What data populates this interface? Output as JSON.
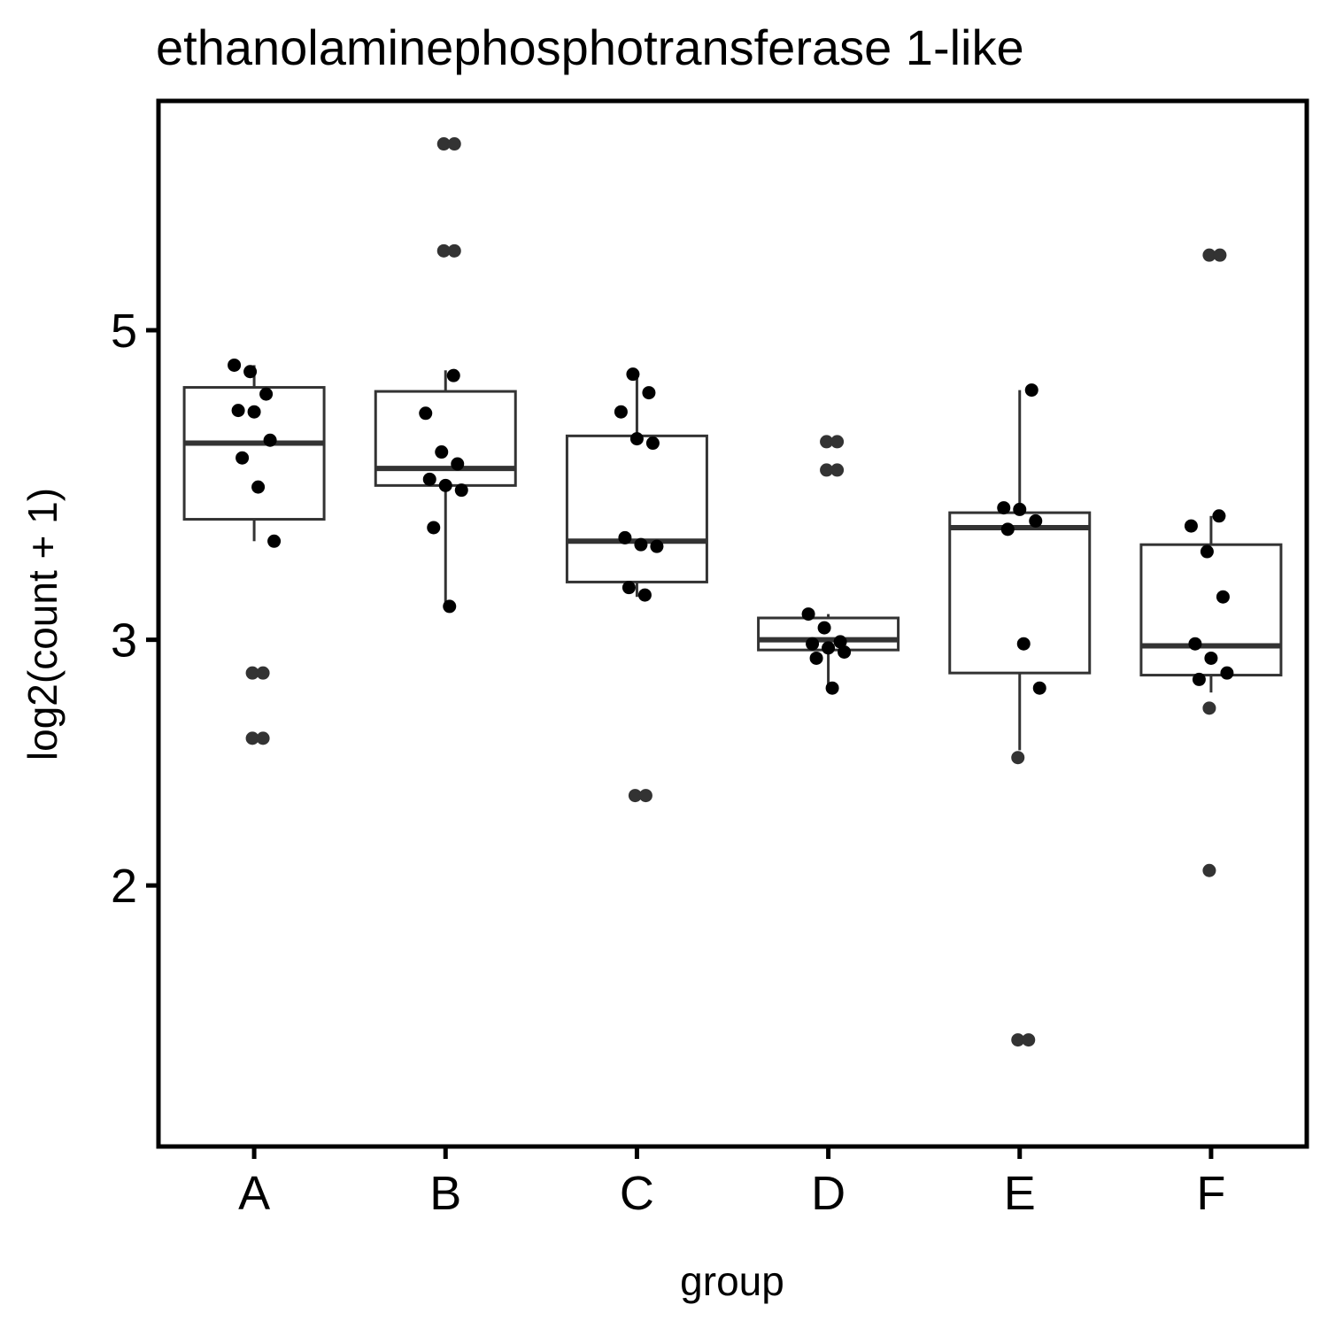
{
  "chart_data": {
    "type": "box",
    "title": "ethanolaminephosphotransferase 1-like",
    "xlabel": "group",
    "ylabel": "log2(count + 1)",
    "y_scale": "log",
    "ylim": [
      1.3,
      7.3
    ],
    "y_ticks": [
      2,
      3,
      5
    ],
    "grid": false,
    "categories": [
      "A",
      "B",
      "C",
      "D",
      "E",
      "F"
    ],
    "colors": {
      "box_stroke": "#333333",
      "point": "#000000",
      "outlier": "#333333",
      "frame": "#000000"
    },
    "boxes": [
      {
        "group": "A",
        "q1": 3.66,
        "median": 4.15,
        "q3": 4.55,
        "whisker_low": 3.53,
        "whisker_high": 4.72
      },
      {
        "group": "B",
        "q1": 3.87,
        "median": 3.98,
        "q3": 4.52,
        "whisker_low": 3.17,
        "whisker_high": 4.68
      },
      {
        "group": "C",
        "q1": 3.3,
        "median": 3.53,
        "q3": 4.2,
        "whisker_low": 3.22,
        "whisker_high": 4.65
      },
      {
        "group": "D",
        "q1": 2.95,
        "median": 3.0,
        "q3": 3.11,
        "whisker_low": 2.77,
        "whisker_high": 3.13
      },
      {
        "group": "E",
        "q1": 2.84,
        "median": 3.61,
        "q3": 3.7,
        "whisker_low": 2.5,
        "whisker_high": 4.53
      },
      {
        "group": "F",
        "q1": 2.83,
        "median": 2.97,
        "q3": 3.51,
        "whisker_low": 2.75,
        "whisker_high": 3.68
      }
    ],
    "points": [
      {
        "group": "A",
        "values": [
          4.72,
          4.67,
          4.5,
          4.38,
          4.37,
          4.17,
          4.05,
          3.86,
          3.53,
          2.84,
          2.84,
          2.55,
          2.55
        ]
      },
      {
        "group": "B",
        "values": [
          6.8,
          6.8,
          5.7,
          5.7,
          4.64,
          4.36,
          4.09,
          4.01,
          3.91,
          3.87,
          3.84,
          3.61,
          3.17
        ]
      },
      {
        "group": "C",
        "values": [
          4.65,
          4.51,
          4.37,
          4.18,
          4.15,
          3.55,
          3.51,
          3.5,
          3.27,
          3.23,
          2.32,
          2.32
        ]
      },
      {
        "group": "D",
        "values": [
          4.16,
          4.16,
          3.97,
          3.97,
          3.13,
          3.06,
          2.99,
          2.98,
          2.96,
          2.94,
          2.91,
          2.77
        ]
      },
      {
        "group": "E",
        "values": [
          4.53,
          3.73,
          3.72,
          3.65,
          3.6,
          2.98,
          2.77,
          2.47,
          1.55,
          1.55
        ]
      },
      {
        "group": "F",
        "values": [
          5.66,
          5.66,
          3.68,
          3.62,
          3.47,
          3.22,
          2.98,
          2.91,
          2.84,
          2.81,
          2.68,
          2.05
        ]
      }
    ]
  }
}
